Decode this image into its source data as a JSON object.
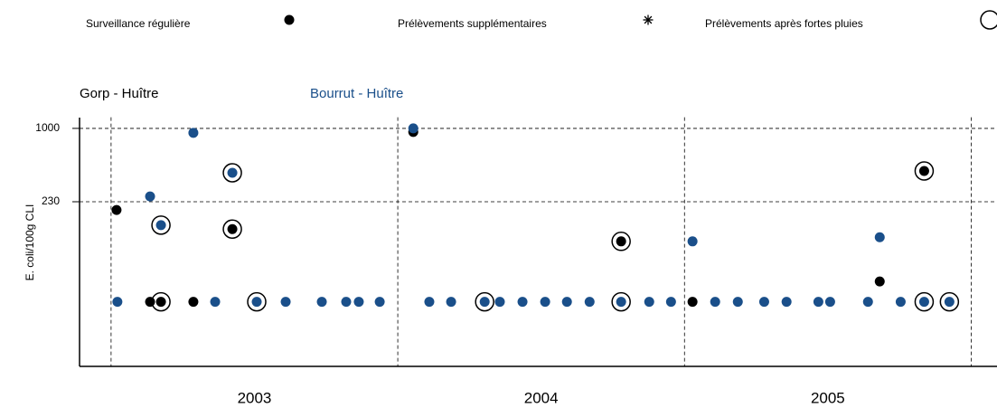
{
  "chart_data": {
    "type": "scatter",
    "legend": [
      {
        "label": "Surveillance régulière",
        "marker": "dot"
      },
      {
        "label": "Prélèvements supplémentaires",
        "marker": "asterisk"
      },
      {
        "label": "Prélèvements après fortes pluies",
        "marker": "ring"
      }
    ],
    "ylabel": "E. coli/100g CLI",
    "ylog": true,
    "ylim": [
      8.5,
      1250
    ],
    "yticks": [
      230,
      1000
    ],
    "xlim": [
      2002.89,
      2006.09
    ],
    "xticks": [
      {
        "value": 2003.5,
        "label": "2003"
      },
      {
        "value": 2004.5,
        "label": "2004"
      },
      {
        "value": 2005.5,
        "label": "2005"
      }
    ],
    "xgrid": [
      2003,
      2004,
      2005,
      2006
    ],
    "grid": true,
    "series": [
      {
        "name": "Gorp - Huître",
        "color": "#000000",
        "x": [
          2003.019,
          2003.136,
          2003.174,
          2003.287,
          2003.423,
          2004.054,
          2004.779,
          2005.028,
          2005.681,
          2005.836
        ],
        "values": [
          195,
          31,
          31,
          31,
          133,
          930,
          104,
          31,
          46.6,
          426
        ],
        "sample_type": [
          0,
          0,
          2,
          0,
          2,
          0,
          2,
          0,
          0,
          2
        ]
      },
      {
        "name": "Bourrut - Huître",
        "color": "#1a4f8a",
        "x": [
          2003.022,
          2003.136,
          2003.174,
          2003.287,
          2003.363,
          2003.423,
          2003.508,
          2003.609,
          2003.735,
          2003.82,
          2003.864,
          2003.937,
          2004.054,
          2004.11,
          2004.186,
          2004.303,
          2004.356,
          2004.435,
          2004.514,
          2004.59,
          2004.669,
          2004.779,
          2004.877,
          2004.953,
          2005.028,
          2005.107,
          2005.186,
          2005.278,
          2005.356,
          2005.467,
          2005.508,
          2005.64,
          2005.681,
          2005.754,
          2005.836,
          2005.924
        ],
        "values": [
          31,
          256,
          144,
          915,
          31,
          411,
          31,
          31,
          31,
          31,
          31,
          31,
          1000,
          31,
          31,
          31,
          31,
          31,
          31,
          31,
          31,
          31,
          31,
          31,
          104,
          31,
          31,
          31,
          31,
          31,
          31,
          31,
          113,
          31,
          31,
          31
        ],
        "sample_type": [
          0,
          0,
          2,
          0,
          0,
          2,
          2,
          0,
          0,
          0,
          0,
          0,
          0,
          0,
          0,
          2,
          0,
          0,
          0,
          0,
          0,
          2,
          0,
          0,
          0,
          0,
          0,
          0,
          0,
          0,
          0,
          0,
          0,
          0,
          2,
          2
        ]
      }
    ]
  }
}
